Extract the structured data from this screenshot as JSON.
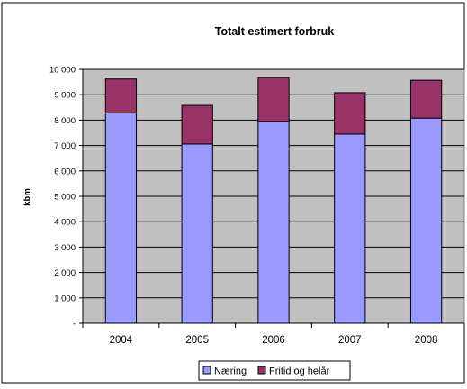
{
  "chart_data": {
    "type": "bar",
    "stacked": true,
    "title": "Totalt estimert forbruk",
    "xlabel": "",
    "ylabel": "kbm",
    "categories": [
      "2004",
      "2005",
      "2006",
      "2007",
      "2008"
    ],
    "series": [
      {
        "name": "Næring",
        "color": "#9999ff",
        "values": [
          8280,
          7060,
          7950,
          7450,
          8080
        ]
      },
      {
        "name": "Fritid og helår",
        "color": "#993366",
        "values": [
          1340,
          1520,
          1730,
          1630,
          1490
        ]
      }
    ],
    "ylim": [
      0,
      10000
    ],
    "yticks": [
      0,
      1000,
      2000,
      3000,
      4000,
      5000,
      6000,
      7000,
      8000,
      9000,
      10000
    ],
    "ytick_labels": [
      "-",
      "1 000",
      "2 000",
      "3 000",
      "4 000",
      "5 000",
      "6 000",
      "7 000",
      "8 000",
      "9 000",
      "10 000"
    ],
    "grid": true,
    "legend_position": "bottom",
    "plot_background": "#c0c0c0"
  }
}
